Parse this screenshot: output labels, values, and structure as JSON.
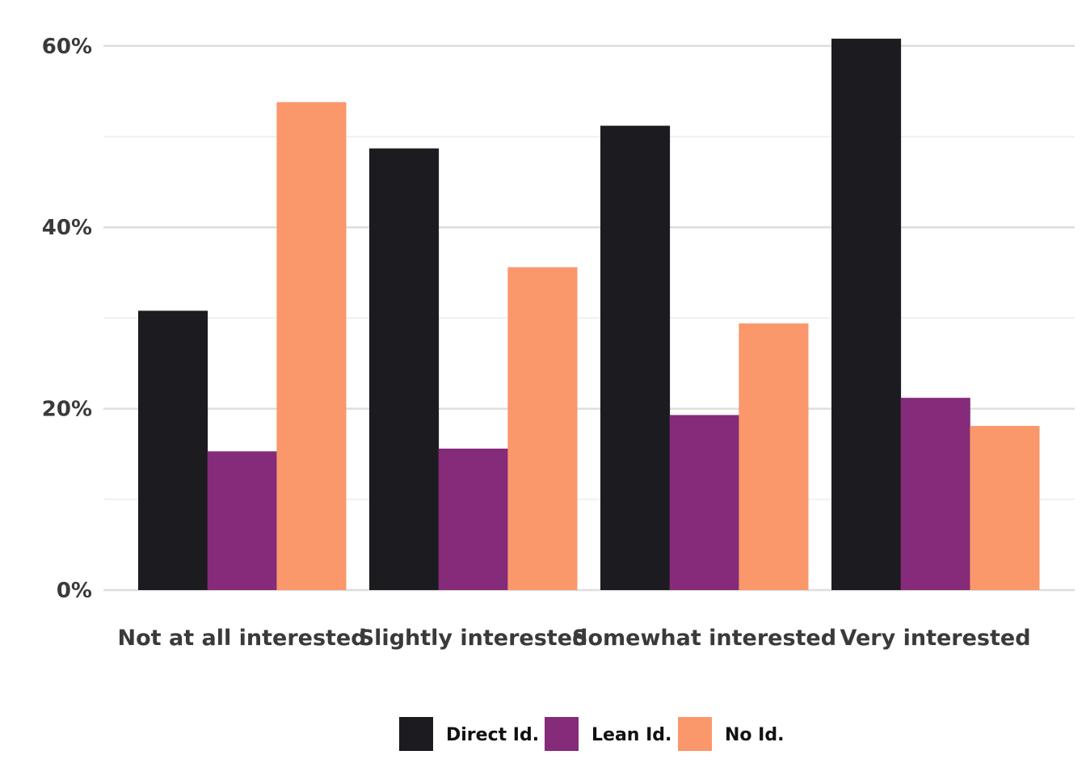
{
  "chart_data": {
    "type": "bar",
    "categories": [
      "Not at all interested",
      "Slightly interested",
      "Somewhat interested",
      "Very interested"
    ],
    "series": [
      {
        "name": "Direct Id.",
        "color": "#1c1b1f",
        "values": [
          30.8,
          48.7,
          51.2,
          60.8
        ]
      },
      {
        "name": "Lean Id.",
        "color": "#852b79",
        "values": [
          15.3,
          15.6,
          19.3,
          21.2
        ]
      },
      {
        "name": "No Id.",
        "color": "#fa976b",
        "values": [
          53.8,
          35.6,
          29.4,
          18.1
        ]
      }
    ],
    "ylim": [
      0,
      60
    ],
    "yticks": [
      0,
      20,
      40,
      60
    ],
    "ytick_labels": [
      "0%",
      "20%",
      "40%",
      "60%"
    ],
    "minor_gridlines": [
      10,
      30,
      50
    ],
    "grid": true,
    "legend_position": "bottom",
    "title": "",
    "xlabel": "",
    "ylabel": ""
  }
}
